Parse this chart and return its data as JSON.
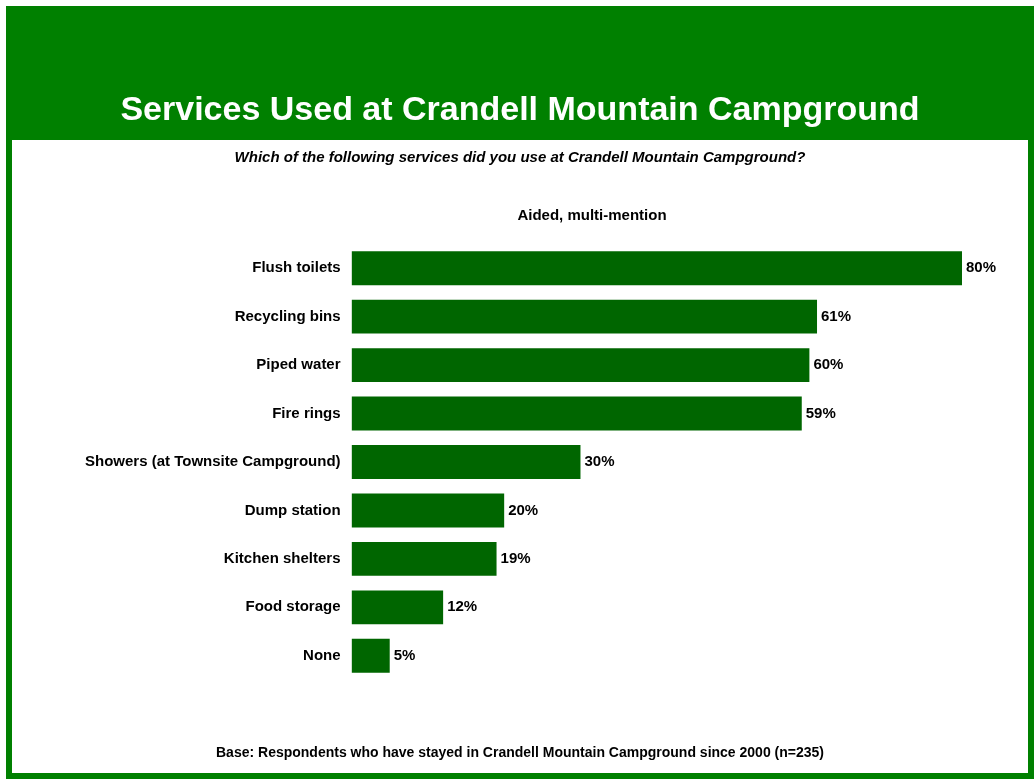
{
  "chart_data": {
    "type": "bar",
    "orientation": "horizontal",
    "title": "Services Used at Crandell Mountain Campground",
    "subtitle": "Which of the following services did you use at Crandell Mountain Campground?",
    "categories": [
      "Flush toilets",
      "Recycling bins",
      "Piped water",
      "Fire rings",
      "Showers (at Townsite Campground)",
      "Dump station",
      "Kitchen shelters",
      "Food storage",
      "None"
    ],
    "values": [
      80,
      61,
      60,
      59,
      30,
      20,
      19,
      12,
      5
    ],
    "value_labels": [
      "80%",
      "61%",
      "60%",
      "59%",
      "30%",
      "20%",
      "19%",
      "12%",
      "5%"
    ],
    "color": "#006600",
    "annotations": [
      "Aided, multi-mention",
      "Base: Respondents who have stayed in Crandell Mountain Campground since 2000 (n=235)"
    ]
  }
}
